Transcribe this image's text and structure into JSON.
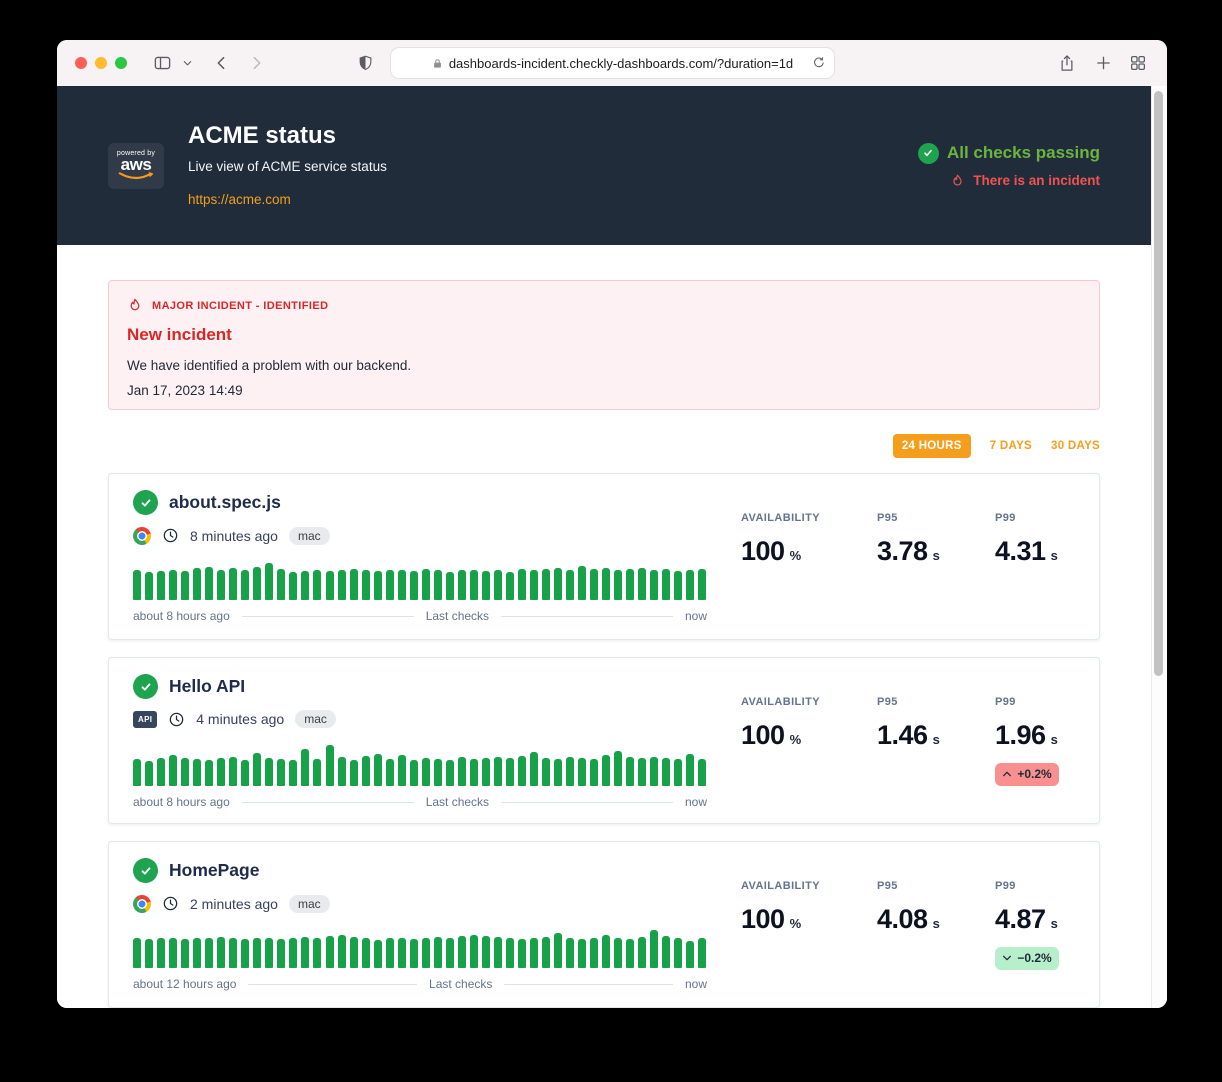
{
  "browser": {
    "url": "dashboards-incident.checkly-dashboards.com/?duration=1d"
  },
  "site": {
    "logo_powered_by": "powered by",
    "logo_brand": "aws",
    "title": "ACME status",
    "subtitle": "Live view of ACME service status",
    "link": "https://acme.com",
    "status_passing": "All checks passing",
    "status_incident": "There is an incident"
  },
  "incident_banner": {
    "tag": "MAJOR INCIDENT - IDENTIFIED",
    "title": "New incident",
    "description": "We have identified a problem with our backend.",
    "timestamp": "Jan 17, 2023 14:49"
  },
  "range_tabs": [
    {
      "label": "24 HOURS",
      "active": true
    },
    {
      "label": "7 DAYS",
      "active": false
    },
    {
      "label": "30 DAYS",
      "active": false
    }
  ],
  "stats_labels": {
    "availability": "AVAILABILITY",
    "p95": "P95",
    "p99": "P99"
  },
  "units": {
    "availability": "%",
    "seconds": "s"
  },
  "colors": {
    "accent_orange": "#f59e1c",
    "bar_green": "#17a24a",
    "status_green": "#6cb43e",
    "status_red": "#f05252",
    "incident_red": "#dc2626",
    "header_bg": "#212c3b",
    "trend_up_bg": "#f98f8f",
    "trend_down_bg": "#b7eecb"
  },
  "checks": [
    {
      "name": "about.spec.js",
      "type": "browser",
      "type_label": "",
      "last_run": "8 minutes ago",
      "location": "mac",
      "availability": "100",
      "p95": "3.78",
      "p99": "4.31",
      "trend": null,
      "axis": {
        "left": "about 8 hours ago",
        "center": "Last checks",
        "right": "now"
      },
      "bars": [
        30,
        28,
        29,
        30,
        29,
        32,
        33,
        30,
        32,
        30,
        33,
        37,
        31,
        28,
        29,
        30,
        29,
        30,
        31,
        30,
        29,
        30,
        30,
        29,
        31,
        30,
        28,
        30,
        30,
        29,
        30,
        28,
        31,
        30,
        31,
        32,
        30,
        34,
        31,
        32,
        30,
        31,
        32,
        30,
        31,
        29,
        30,
        31
      ]
    },
    {
      "name": "Hello API",
      "type": "api",
      "type_label": "API",
      "last_run": "4 minutes ago",
      "location": "mac",
      "availability": "100",
      "p95": "1.46",
      "p99": "1.96",
      "trend": {
        "direction": "up",
        "label": "+0.2%"
      },
      "axis": {
        "left": "about 8 hours ago",
        "center": "Last checks",
        "right": "now"
      },
      "bars": [
        27,
        25,
        28,
        31,
        28,
        27,
        26,
        28,
        29,
        26,
        33,
        28,
        27,
        26,
        37,
        27,
        41,
        29,
        26,
        30,
        32,
        27,
        31,
        26,
        28,
        27,
        26,
        29,
        27,
        28,
        29,
        28,
        30,
        34,
        28,
        27,
        29,
        28,
        27,
        31,
        35,
        29,
        28,
        29,
        28,
        27,
        32,
        27
      ]
    },
    {
      "name": "HomePage",
      "type": "browser",
      "type_label": "",
      "last_run": "2 minutes ago",
      "location": "mac",
      "availability": "100",
      "p95": "4.08",
      "p99": "4.87",
      "trend": {
        "direction": "down",
        "label": "−0.2%"
      },
      "axis": {
        "left": "about 12 hours ago",
        "center": "Last checks",
        "right": "now"
      },
      "bars": [
        30,
        29,
        30,
        30,
        29,
        30,
        30,
        31,
        30,
        29,
        30,
        30,
        29,
        30,
        31,
        30,
        32,
        33,
        31,
        30,
        28,
        30,
        30,
        29,
        30,
        31,
        30,
        32,
        33,
        32,
        31,
        30,
        29,
        30,
        31,
        35,
        30,
        29,
        30,
        33,
        30,
        29,
        31,
        38,
        32,
        30,
        27,
        30
      ]
    }
  ]
}
